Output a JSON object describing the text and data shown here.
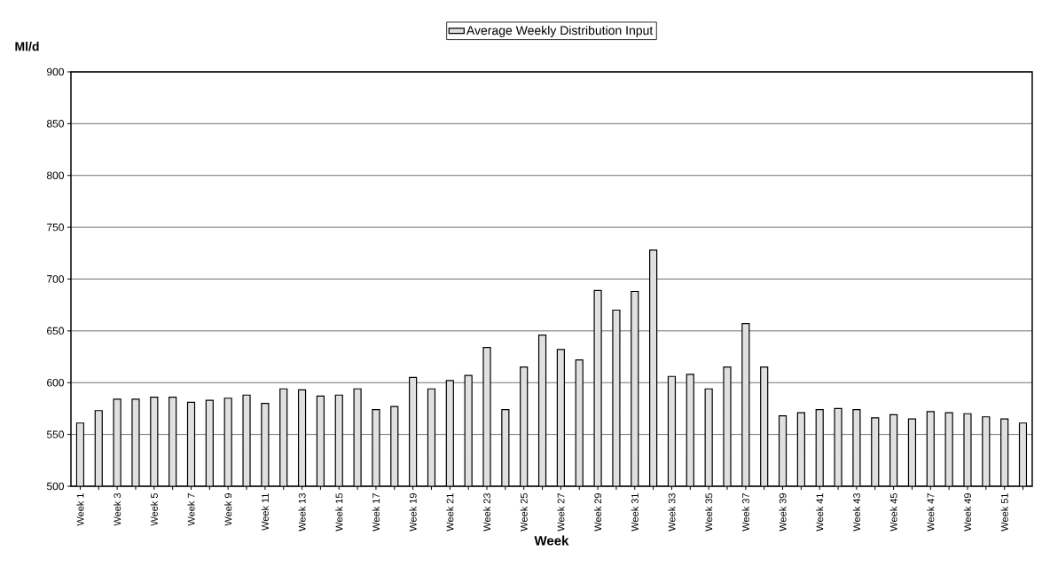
{
  "chart_data": {
    "type": "bar",
    "categories": [
      "Week 1",
      null,
      "Week 3",
      null,
      "Week 5",
      null,
      "Week 7",
      null,
      "Week 9",
      null,
      "Week 11",
      null,
      "Week 13",
      null,
      "Week 15",
      null,
      "Week 17",
      null,
      "Week 19",
      null,
      "Week 21",
      null,
      "Week 23",
      null,
      "Week 25",
      null,
      "Week 27",
      null,
      "Week 29",
      null,
      "Week 31",
      null,
      "Week 33",
      null,
      "Week 35",
      null,
      "Week 37",
      null,
      "Week 39",
      null,
      "Week 41",
      null,
      "Week 43",
      null,
      "Week 45",
      null,
      "Week 47",
      null,
      "Week 49",
      null,
      "Week 51",
      null
    ],
    "series": [
      {
        "name": "Average Weekly Distribution Input",
        "color": "#e0e0e0",
        "values": [
          561,
          573,
          584,
          584,
          586,
          586,
          581,
          583,
          585,
          588,
          580,
          594,
          593,
          587,
          588,
          594,
          574,
          577,
          605,
          594,
          602,
          607,
          634,
          574,
          615,
          646,
          632,
          622,
          689,
          670,
          688,
          728,
          606,
          608,
          594,
          615,
          657,
          615,
          568,
          571,
          574,
          575,
          574,
          566,
          569,
          565,
          572,
          571,
          570,
          567,
          565,
          561
        ]
      }
    ],
    "xlabel": "Week",
    "ylabel": "Ml/d",
    "ylim": [
      500,
      900
    ],
    "yticks": [
      500,
      550,
      600,
      650,
      700,
      750,
      800,
      850,
      900
    ],
    "grid": "y",
    "legend": "top"
  }
}
